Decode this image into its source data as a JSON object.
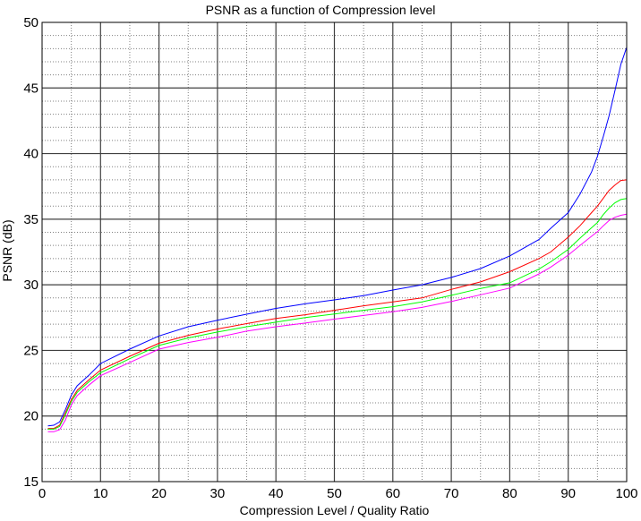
{
  "chart_data": {
    "type": "line",
    "title": "PSNR as a function of Compression level",
    "xlabel": "Compression Level / Quality Ratio",
    "ylabel": "PSNR (dB)",
    "xlim": [
      0,
      100
    ],
    "ylim": [
      15,
      50
    ],
    "x_ticks": [
      0,
      10,
      20,
      30,
      40,
      50,
      60,
      70,
      80,
      90,
      100
    ],
    "y_ticks": [
      15,
      20,
      25,
      30,
      35,
      40,
      45,
      50
    ],
    "x_minor_step": 5,
    "y_minor_step": 1,
    "grid": true,
    "legend": null,
    "x": [
      1,
      2,
      3,
      4,
      5,
      6,
      8,
      10,
      15,
      20,
      25,
      30,
      35,
      40,
      45,
      50,
      55,
      60,
      65,
      70,
      75,
      80,
      85,
      87,
      90,
      92,
      94,
      95,
      96,
      97,
      98,
      99,
      100
    ],
    "series": [
      {
        "name": "blue",
        "color": "#0000ff",
        "values": [
          19.25,
          19.3,
          19.55,
          20.5,
          21.6,
          22.3,
          23.1,
          24.0,
          25.1,
          26.1,
          26.8,
          27.3,
          27.76,
          28.2,
          28.55,
          28.85,
          29.17,
          29.6,
          30.0,
          30.56,
          31.24,
          32.2,
          33.45,
          34.3,
          35.5,
          36.9,
          38.6,
          39.8,
          41.3,
          42.9,
          44.8,
          46.8,
          48.1
        ]
      },
      {
        "name": "red",
        "color": "#ff0000",
        "values": [
          19.05,
          19.05,
          19.3,
          20.25,
          21.25,
          21.95,
          22.75,
          23.5,
          24.55,
          25.55,
          26.15,
          26.63,
          27.04,
          27.43,
          27.72,
          28.06,
          28.4,
          28.7,
          29.0,
          29.65,
          30.22,
          31.0,
          32.0,
          32.5,
          33.63,
          34.5,
          35.5,
          36.0,
          36.6,
          37.2,
          37.6,
          37.95,
          38.0
        ]
      },
      {
        "name": "green",
        "color": "#00ff00",
        "values": [
          19.0,
          19.0,
          19.2,
          20.1,
          21.1,
          21.8,
          22.6,
          23.3,
          24.37,
          25.38,
          25.95,
          26.4,
          26.8,
          27.15,
          27.5,
          27.78,
          28.06,
          28.33,
          28.7,
          29.2,
          29.72,
          30.15,
          31.2,
          31.75,
          32.7,
          33.55,
          34.35,
          34.75,
          35.35,
          35.85,
          36.25,
          36.5,
          36.57
        ]
      },
      {
        "name": "magenta",
        "color": "#ff00ff",
        "values": [
          18.8,
          18.8,
          18.96,
          19.7,
          20.85,
          21.55,
          22.35,
          23.07,
          24.08,
          25.1,
          25.6,
          26.0,
          26.47,
          26.8,
          27.08,
          27.38,
          27.66,
          27.94,
          28.28,
          28.73,
          29.24,
          29.75,
          30.83,
          31.35,
          32.26,
          33.0,
          33.7,
          34.05,
          34.5,
          34.9,
          35.15,
          35.3,
          35.38
        ]
      }
    ]
  }
}
